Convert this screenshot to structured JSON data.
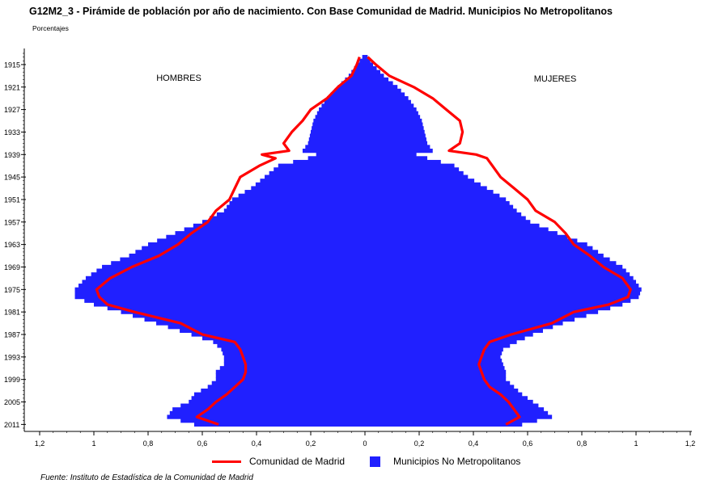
{
  "title": "G12M2_3 - Pirámide de población por año de nacimiento. Con Base Comunidad de Madrid. Municipios No Metropolitanos",
  "subtitle": "Porcentajes",
  "source": "Fuente: Instituto de Estadística de la Comunidad de Madrid",
  "chart_data": {
    "type": "population-pyramid",
    "labels": {
      "left": "HOMBRES",
      "right": "MUJERES"
    },
    "y_ticks": [
      "1915",
      "1921",
      "1927",
      "1933",
      "1939",
      "1945",
      "1951",
      "1957",
      "1963",
      "1969",
      "1975",
      "1981",
      "1987",
      "1993",
      "1999",
      "2005",
      "2011"
    ],
    "x_ticks": [
      "1,2",
      "1",
      "0,8",
      "0,6",
      "0,4",
      "0,2",
      "0",
      "0,2",
      "0,4",
      "0,6",
      "0,8",
      "1",
      "1,2"
    ],
    "xlim": [
      -1.2,
      1.2
    ],
    "ylim": [
      1912,
      2012
    ],
    "colors": {
      "bars": "#2020ff",
      "line": "#ff0000"
    },
    "series": [
      {
        "name": "Municipios No Metropolitanos",
        "kind": "bars",
        "hombres_points": [
          [
            1913,
            0.01
          ],
          [
            1915,
            0.03
          ],
          [
            1918,
            0.06
          ],
          [
            1921,
            0.1
          ],
          [
            1924,
            0.14
          ],
          [
            1927,
            0.17
          ],
          [
            1930,
            0.19
          ],
          [
            1933,
            0.2
          ],
          [
            1936,
            0.21
          ],
          [
            1938,
            0.23
          ],
          [
            1939,
            0.18
          ],
          [
            1940,
            0.21
          ],
          [
            1942,
            0.32
          ],
          [
            1945,
            0.37
          ],
          [
            1948,
            0.42
          ],
          [
            1951,
            0.49
          ],
          [
            1954,
            0.52
          ],
          [
            1957,
            0.6
          ],
          [
            1960,
            0.7
          ],
          [
            1963,
            0.8
          ],
          [
            1966,
            0.87
          ],
          [
            1969,
            0.97
          ],
          [
            1972,
            1.03
          ],
          [
            1975,
            1.07
          ],
          [
            1977,
            1.07
          ],
          [
            1979,
            1.0
          ],
          [
            1981,
            0.9
          ],
          [
            1984,
            0.77
          ],
          [
            1987,
            0.64
          ],
          [
            1989,
            0.56
          ],
          [
            1991,
            0.53
          ],
          [
            1993,
            0.52
          ],
          [
            1995,
            0.52
          ],
          [
            1997,
            0.55
          ],
          [
            1999,
            0.55
          ],
          [
            2001,
            0.58
          ],
          [
            2003,
            0.63
          ],
          [
            2005,
            0.65
          ],
          [
            2007,
            0.71
          ],
          [
            2009,
            0.73
          ],
          [
            2011,
            0.63
          ]
        ],
        "mujeres_points": [
          [
            1913,
            0.01
          ],
          [
            1915,
            0.03
          ],
          [
            1918,
            0.07
          ],
          [
            1921,
            0.12
          ],
          [
            1924,
            0.16
          ],
          [
            1927,
            0.19
          ],
          [
            1930,
            0.21
          ],
          [
            1933,
            0.22
          ],
          [
            1936,
            0.23
          ],
          [
            1938,
            0.25
          ],
          [
            1939,
            0.19
          ],
          [
            1940,
            0.23
          ],
          [
            1942,
            0.33
          ],
          [
            1945,
            0.38
          ],
          [
            1948,
            0.45
          ],
          [
            1951,
            0.52
          ],
          [
            1954,
            0.56
          ],
          [
            1957,
            0.61
          ],
          [
            1960,
            0.71
          ],
          [
            1963,
            0.82
          ],
          [
            1966,
            0.88
          ],
          [
            1969,
            0.95
          ],
          [
            1972,
            0.99
          ],
          [
            1975,
            1.02
          ],
          [
            1977,
            1.01
          ],
          [
            1979,
            0.95
          ],
          [
            1981,
            0.86
          ],
          [
            1984,
            0.73
          ],
          [
            1987,
            0.62
          ],
          [
            1989,
            0.56
          ],
          [
            1991,
            0.51
          ],
          [
            1993,
            0.5
          ],
          [
            1995,
            0.51
          ],
          [
            1997,
            0.52
          ],
          [
            1999,
            0.52
          ],
          [
            2001,
            0.55
          ],
          [
            2003,
            0.58
          ],
          [
            2005,
            0.62
          ],
          [
            2007,
            0.66
          ],
          [
            2009,
            0.69
          ],
          [
            2011,
            0.58
          ]
        ]
      },
      {
        "name": "Comunidad de Madrid",
        "kind": "line",
        "hombres_points": [
          [
            1913,
            0.02
          ],
          [
            1915,
            0.03
          ],
          [
            1918,
            0.05
          ],
          [
            1921,
            0.1
          ],
          [
            1924,
            0.14
          ],
          [
            1927,
            0.2
          ],
          [
            1930,
            0.23
          ],
          [
            1933,
            0.27
          ],
          [
            1936,
            0.3
          ],
          [
            1938,
            0.28
          ],
          [
            1939,
            0.38
          ],
          [
            1940,
            0.33
          ],
          [
            1942,
            0.39
          ],
          [
            1945,
            0.46
          ],
          [
            1948,
            0.48
          ],
          [
            1951,
            0.5
          ],
          [
            1954,
            0.55
          ],
          [
            1957,
            0.58
          ],
          [
            1960,
            0.64
          ],
          [
            1963,
            0.69
          ],
          [
            1966,
            0.76
          ],
          [
            1969,
            0.86
          ],
          [
            1972,
            0.94
          ],
          [
            1975,
            0.99
          ],
          [
            1977,
            0.98
          ],
          [
            1979,
            0.95
          ],
          [
            1981,
            0.85
          ],
          [
            1984,
            0.68
          ],
          [
            1987,
            0.6
          ],
          [
            1989,
            0.48
          ],
          [
            1991,
            0.46
          ],
          [
            1993,
            0.45
          ],
          [
            1995,
            0.44
          ],
          [
            1997,
            0.44
          ],
          [
            1999,
            0.45
          ],
          [
            2001,
            0.48
          ],
          [
            2003,
            0.51
          ],
          [
            2005,
            0.55
          ],
          [
            2007,
            0.58
          ],
          [
            2009,
            0.62
          ],
          [
            2011,
            0.54
          ]
        ],
        "mujeres_points": [
          [
            1913,
            0.01
          ],
          [
            1915,
            0.04
          ],
          [
            1918,
            0.09
          ],
          [
            1921,
            0.18
          ],
          [
            1924,
            0.25
          ],
          [
            1927,
            0.3
          ],
          [
            1930,
            0.35
          ],
          [
            1933,
            0.36
          ],
          [
            1936,
            0.35
          ],
          [
            1938,
            0.31
          ],
          [
            1939,
            0.41
          ],
          [
            1940,
            0.45
          ],
          [
            1942,
            0.47
          ],
          [
            1945,
            0.5
          ],
          [
            1948,
            0.55
          ],
          [
            1951,
            0.6
          ],
          [
            1954,
            0.63
          ],
          [
            1957,
            0.7
          ],
          [
            1960,
            0.74
          ],
          [
            1963,
            0.77
          ],
          [
            1966,
            0.83
          ],
          [
            1969,
            0.88
          ],
          [
            1972,
            0.95
          ],
          [
            1975,
            0.98
          ],
          [
            1977,
            0.97
          ],
          [
            1979,
            0.9
          ],
          [
            1981,
            0.77
          ],
          [
            1984,
            0.69
          ],
          [
            1987,
            0.54
          ],
          [
            1989,
            0.46
          ],
          [
            1991,
            0.44
          ],
          [
            1993,
            0.43
          ],
          [
            1995,
            0.42
          ],
          [
            1997,
            0.43
          ],
          [
            1999,
            0.44
          ],
          [
            2001,
            0.46
          ],
          [
            2003,
            0.5
          ],
          [
            2005,
            0.53
          ],
          [
            2007,
            0.55
          ],
          [
            2009,
            0.57
          ],
          [
            2011,
            0.52
          ]
        ]
      }
    ]
  }
}
